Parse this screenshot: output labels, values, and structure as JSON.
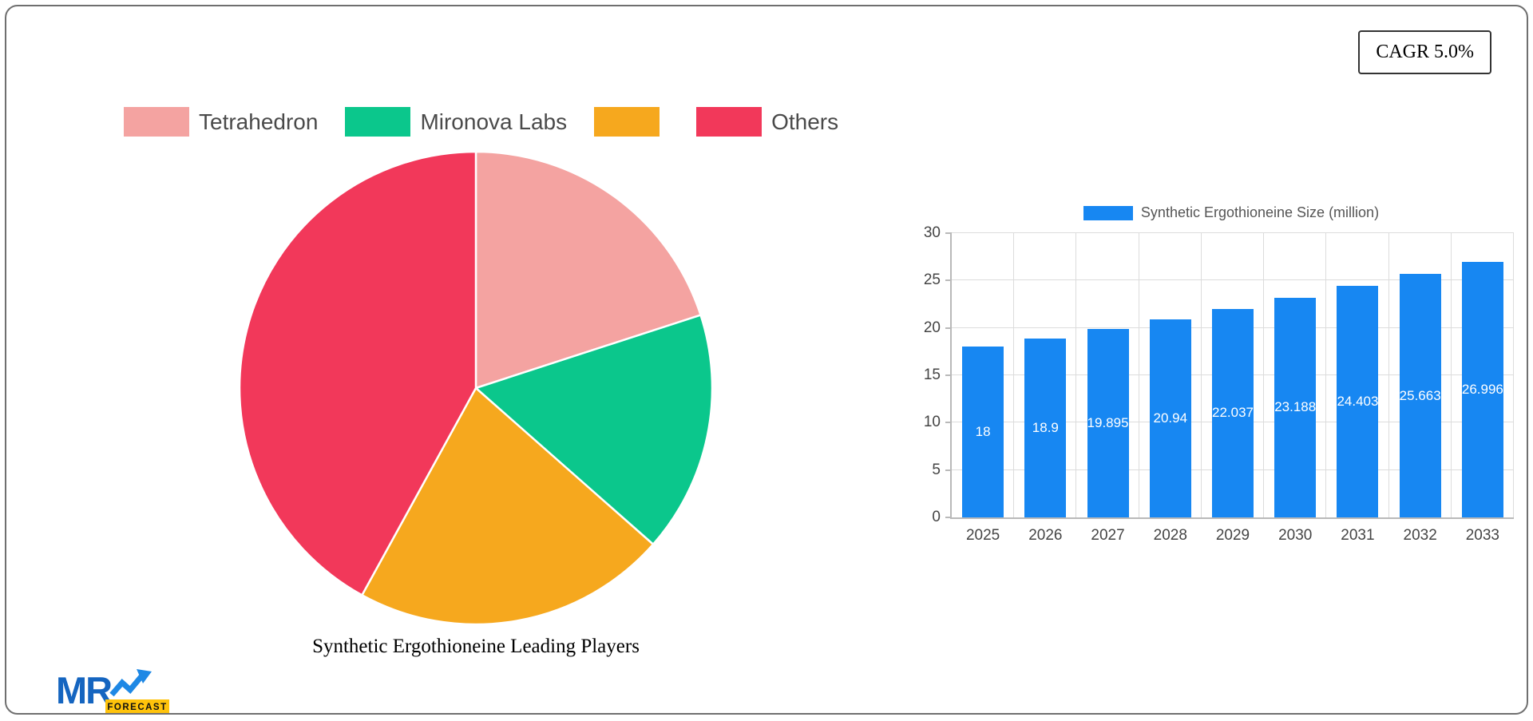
{
  "header": {
    "cagr_label": "CAGR 5.0%"
  },
  "pie": {
    "title": "Synthetic Ergothioneine Leading Players"
  },
  "chart_data": [
    {
      "type": "pie",
      "title": "Synthetic Ergothioneine Leading Players",
      "labels": [
        "Tetrahedron",
        "Mironova Labs",
        "",
        "Others"
      ],
      "values": [
        20,
        16.5,
        21.5,
        42
      ],
      "values_note": "percent shares estimated from arc angles; no numeric labels shown on pie",
      "colors": [
        "#F4A3A1",
        "#0BC78C",
        "#F6A81E",
        "#F2385A"
      ],
      "start_angle": "top",
      "direction": "clockwise",
      "legend_position": "top"
    },
    {
      "type": "bar",
      "legend": "Synthetic Ergothioneine Size (million)",
      "categories": [
        "2025",
        "2026",
        "2027",
        "2028",
        "2029",
        "2030",
        "2031",
        "2032",
        "2033"
      ],
      "values": [
        18,
        18.9,
        19.895,
        20.94,
        22.037,
        23.188,
        24.403,
        25.663,
        26.996
      ],
      "bar_labels": [
        "18",
        "18.9",
        "19.895",
        "20.94",
        "22.037",
        "23.188",
        "24.403",
        "25.663",
        "26.996"
      ],
      "bar_color": "#1787F2",
      "ylim": [
        0,
        30
      ],
      "yticks": [
        0,
        5,
        10,
        15,
        20,
        25,
        30
      ],
      "grid": true,
      "legend_position": "top"
    }
  ],
  "logo": {
    "text": "MR",
    "badge": "FORECAST",
    "text_color": "#1565C0",
    "arrow_color": "#1E88E5",
    "badge_color": "#FFC30B",
    "badge_text_color": "#111111"
  }
}
